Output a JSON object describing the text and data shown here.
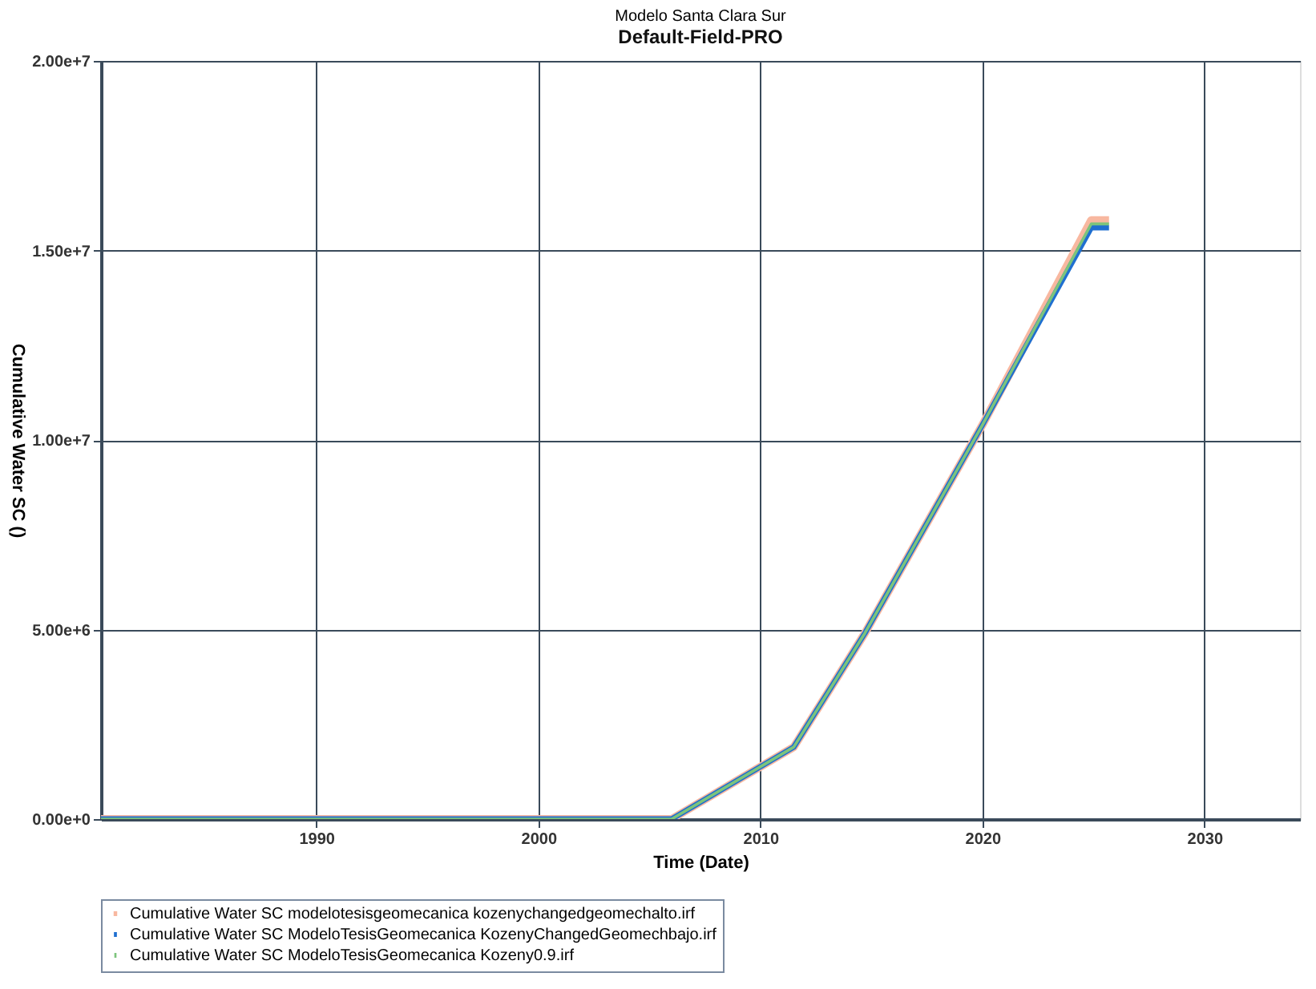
{
  "chart_data": {
    "type": "line",
    "title": "Modelo Santa Clara Sur",
    "subtitle": "Default-Field-PRO",
    "xlabel": "Time (Date)",
    "ylabel": "Cumulative Water SC ()",
    "x": [
      1980.3,
      2006.0,
      2011.5,
      2014.7,
      2020.0,
      2024.9,
      2025.7
    ],
    "series": [
      {
        "name": "Cumulative Water SC modelotesisgeomecanica kozenychangedgeomechalto.irf",
        "color": "#f8b8a0",
        "values": [
          0,
          0,
          1900000.0,
          4900000.0,
          10400000.0,
          15800000.0,
          15800000.0
        ]
      },
      {
        "name": "Cumulative Water SC ModeloTesisGeomecanica KozenyChangedGeomechbajo.irf",
        "color": "#1f6fd0",
        "values": [
          0,
          0,
          1900000.0,
          4900000.0,
          10400000.0,
          15600000.0,
          15600000.0
        ]
      },
      {
        "name": "Cumulative Water SC ModeloTesisGeomecanica Kozeny0.9.irf",
        "color": "#7cc47c",
        "values": [
          0,
          0,
          1900000.0,
          4900000.0,
          10400000.0,
          15700000.0,
          15700000.0
        ]
      }
    ],
    "xlim": [
      1980.3,
      2034.3
    ],
    "xticks": [
      1990,
      2000,
      2010,
      2020,
      2030
    ],
    "ylim": [
      0,
      20000000.0
    ],
    "yticks": [
      {
        "value": 0,
        "label": "0.00e+0"
      },
      {
        "value": 5000000,
        "label": "5.00e+6"
      },
      {
        "value": 10000000,
        "label": "1.00e+7"
      },
      {
        "value": 15000000,
        "label": "1.50e+7"
      },
      {
        "value": 20000000,
        "label": "2.00e+7"
      }
    ],
    "grid": true,
    "legend": "bottom",
    "marker": "none",
    "line_style": "solid"
  }
}
